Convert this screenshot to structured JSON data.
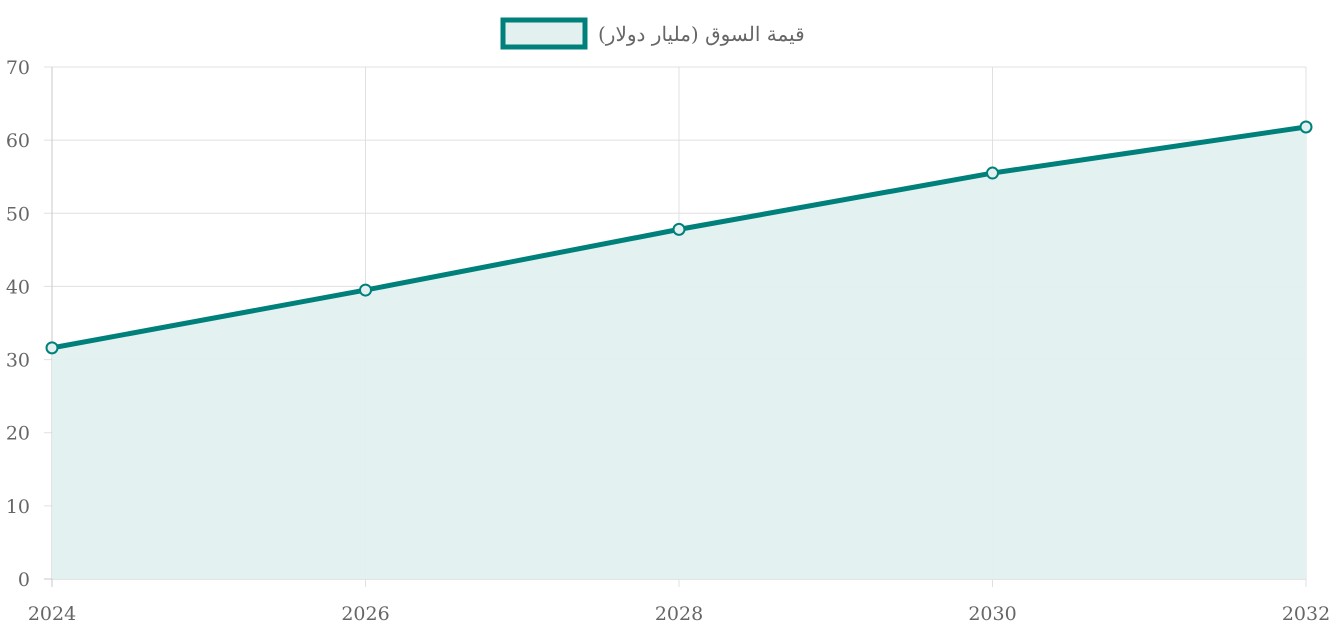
{
  "chart_data": {
    "type": "area",
    "series": [
      {
        "name": "قيمة السوق (مليار دولار)",
        "x": [
          2024,
          2026,
          2028,
          2030,
          2032
        ],
        "values": [
          31.6,
          39.5,
          47.8,
          55.5,
          61.8
        ]
      }
    ],
    "x_ticks": [
      "2024",
      "2026",
      "2028",
      "2030",
      "2032"
    ],
    "y_ticks": [
      "0",
      "10",
      "20",
      "30",
      "40",
      "50",
      "60",
      "70"
    ],
    "xlim": [
      2024,
      2032
    ],
    "ylim": [
      0,
      70
    ],
    "grid": true,
    "legend_position": "top-center",
    "colors": {
      "line": "#00807a",
      "fill": "#e2f1f0",
      "grid": "#e0e0e0",
      "axis": "#c8c8c8",
      "text": "#666666"
    }
  }
}
